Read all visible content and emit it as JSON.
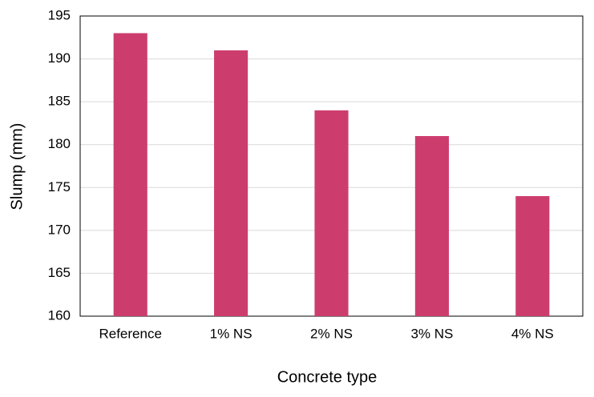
{
  "chart_data": {
    "type": "bar",
    "categories": [
      "Reference",
      "1% NS",
      "2% NS",
      "3% NS",
      "4% NS"
    ],
    "values": [
      193,
      191,
      184,
      181,
      174
    ],
    "color": "#cc3d6e",
    "x_label": "Concrete type",
    "y_label": "Slump (mm)",
    "ylim": [
      160,
      195
    ],
    "yticks": [
      160,
      165,
      170,
      175,
      180,
      185,
      190,
      195
    ],
    "grid": true
  }
}
